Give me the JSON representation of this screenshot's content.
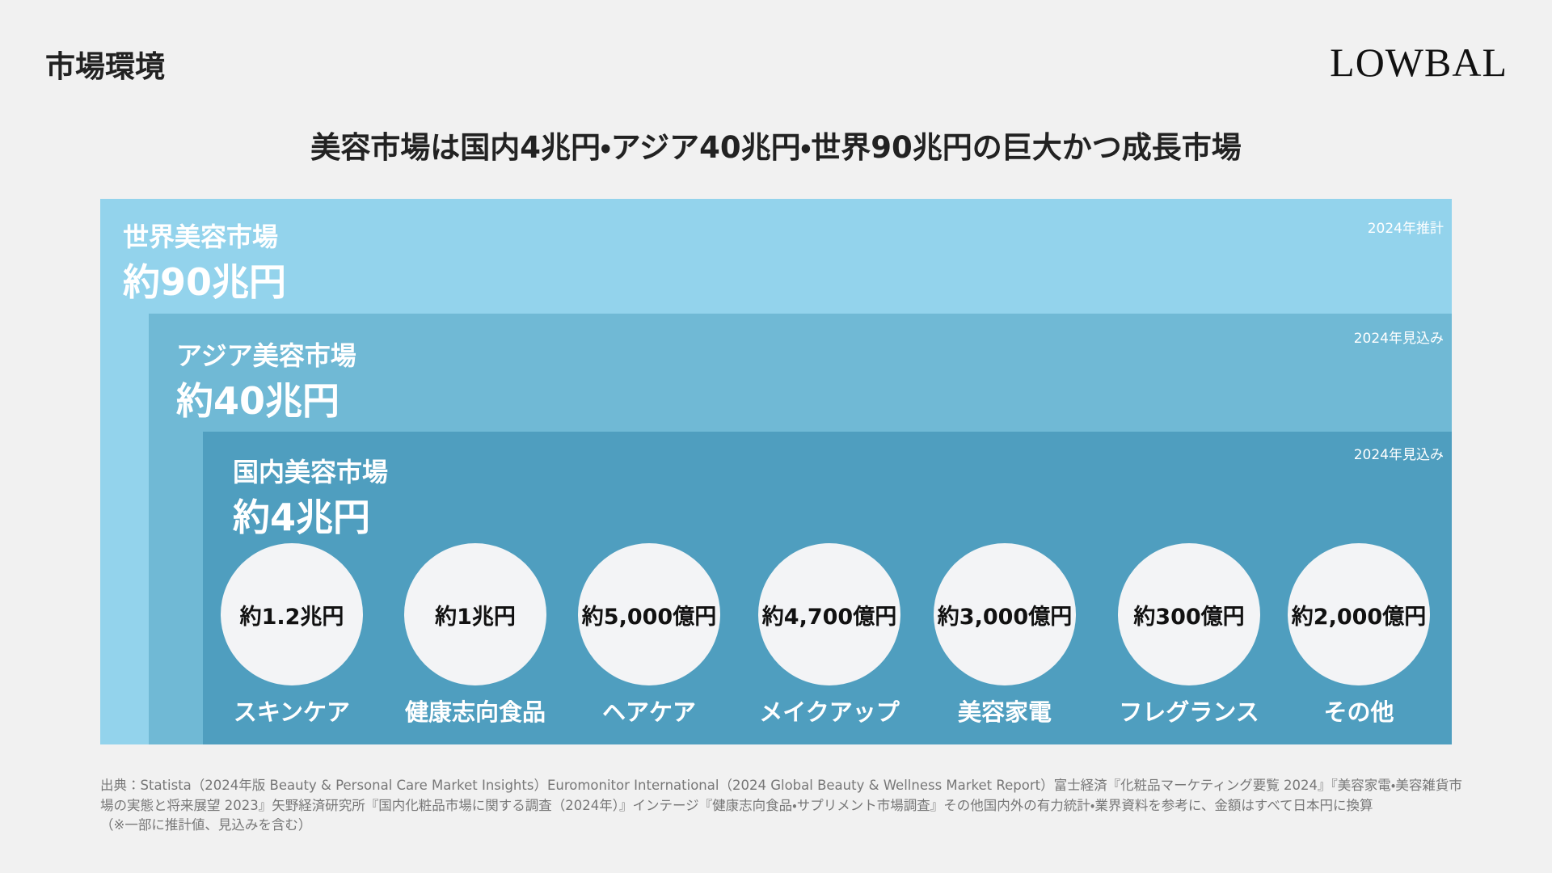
{
  "header": {
    "title": "市場環境",
    "logo": "LOWBAL"
  },
  "headline": "美容市場は国内4兆円・アジア40兆円・世界90兆円の巨大かつ成長市場",
  "markets": [
    {
      "label": "世界美容市場",
      "value": "約90兆円",
      "note": "2024年推計"
    },
    {
      "label": "アジア美容市場",
      "value": "約40兆円",
      "note": "2024年見込み"
    },
    {
      "label": "国内美容市場",
      "value": "約4兆円",
      "note": "2024年見込み"
    }
  ],
  "segments": [
    {
      "value": "約1.2兆円",
      "label": "スキンケア"
    },
    {
      "value": "約1兆円",
      "label": "健康志向食品"
    },
    {
      "value": "約5,000億円",
      "label": "ヘアケア"
    },
    {
      "value": "約4,700億円",
      "label": "メイクアップ"
    },
    {
      "value": "約3,000億円",
      "label": "美容家電"
    },
    {
      "value": "約300億円",
      "label": "フレグランス"
    },
    {
      "value": "約2,000億円",
      "label": "その他"
    }
  ],
  "source": [
    "出典：Statista（2024年版 Beauty & Personal Care Market Insights）Euromonitor International（2024 Global Beauty & Wellness Market Report）富士経済『化粧品マーケティング要覧 2024』『美容家電・美容雑貨市",
    "場の実態と将来展望 2023』矢野経済研究所『国内化粧品市場に関する調査（2024年）』インテージ『健康志向食品・サプリメント市場調査』その他国内外の有力統計・業界資料を参考に、金額はすべて日本円に換算",
    "（※一部に推計値、見込みを含む）"
  ]
}
